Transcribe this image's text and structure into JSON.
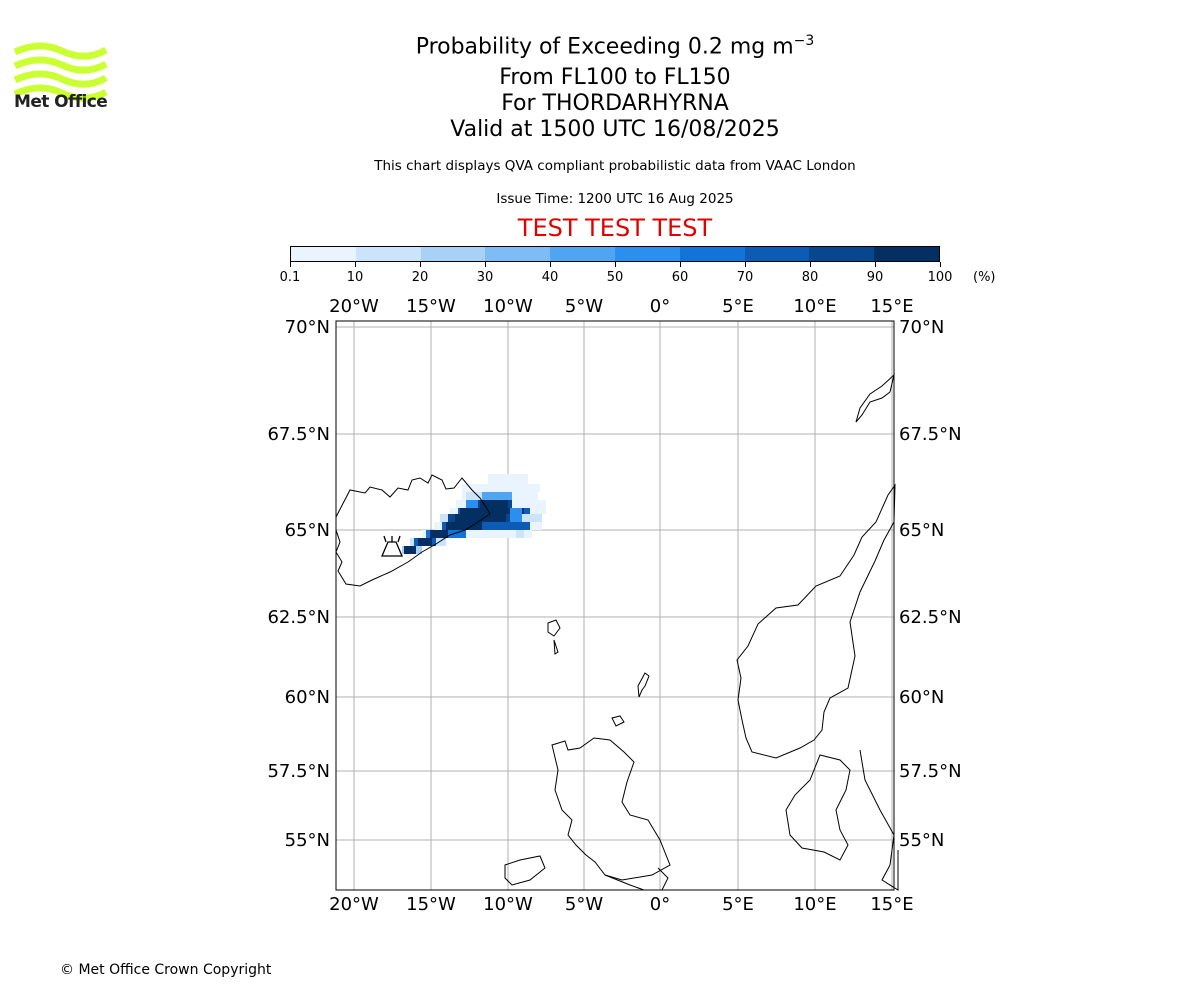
{
  "logo": {
    "text": "Met Office",
    "stripe_color": "#ccff33"
  },
  "header": {
    "title_main": "Probability of Exceeding 0.2 mg m",
    "title_sup": "−3",
    "level_range": "From FL100 to FL150",
    "volcano_line": "For THORDARHYRNA",
    "valid_time": "Valid at 1500 UTC 16/08/2025",
    "description": "This chart displays QVA compliant probabilistic data from VAAC London",
    "issue_time": "Issue Time: 1200 UTC 16 Aug 2025",
    "test_banner": "TEST TEST TEST"
  },
  "colorbar": {
    "boundaries": [
      "0.1",
      "10",
      "20",
      "30",
      "40",
      "50",
      "60",
      "70",
      "80",
      "90",
      "100"
    ],
    "colors": [
      "#eaf4fe",
      "#cce4fb",
      "#a8d1f8",
      "#7ebcf5",
      "#4fa5f2",
      "#2a8fee",
      "#1274d8",
      "#0c5cb5",
      "#07478f",
      "#042f63"
    ],
    "unit": "(%)"
  },
  "map": {
    "lon_labels": [
      "20°W",
      "15°W",
      "10°W",
      "5°W",
      "0°",
      "5°E",
      "10°E",
      "15°E"
    ],
    "lat_labels": [
      "70°N",
      "67.5°N",
      "65°N",
      "62.5°N",
      "60°N",
      "57.5°N",
      "55°N"
    ],
    "volcano_marker": "volcano-symbol"
  },
  "footer": {
    "copyright": "© Met Office Crown Copyright"
  }
}
